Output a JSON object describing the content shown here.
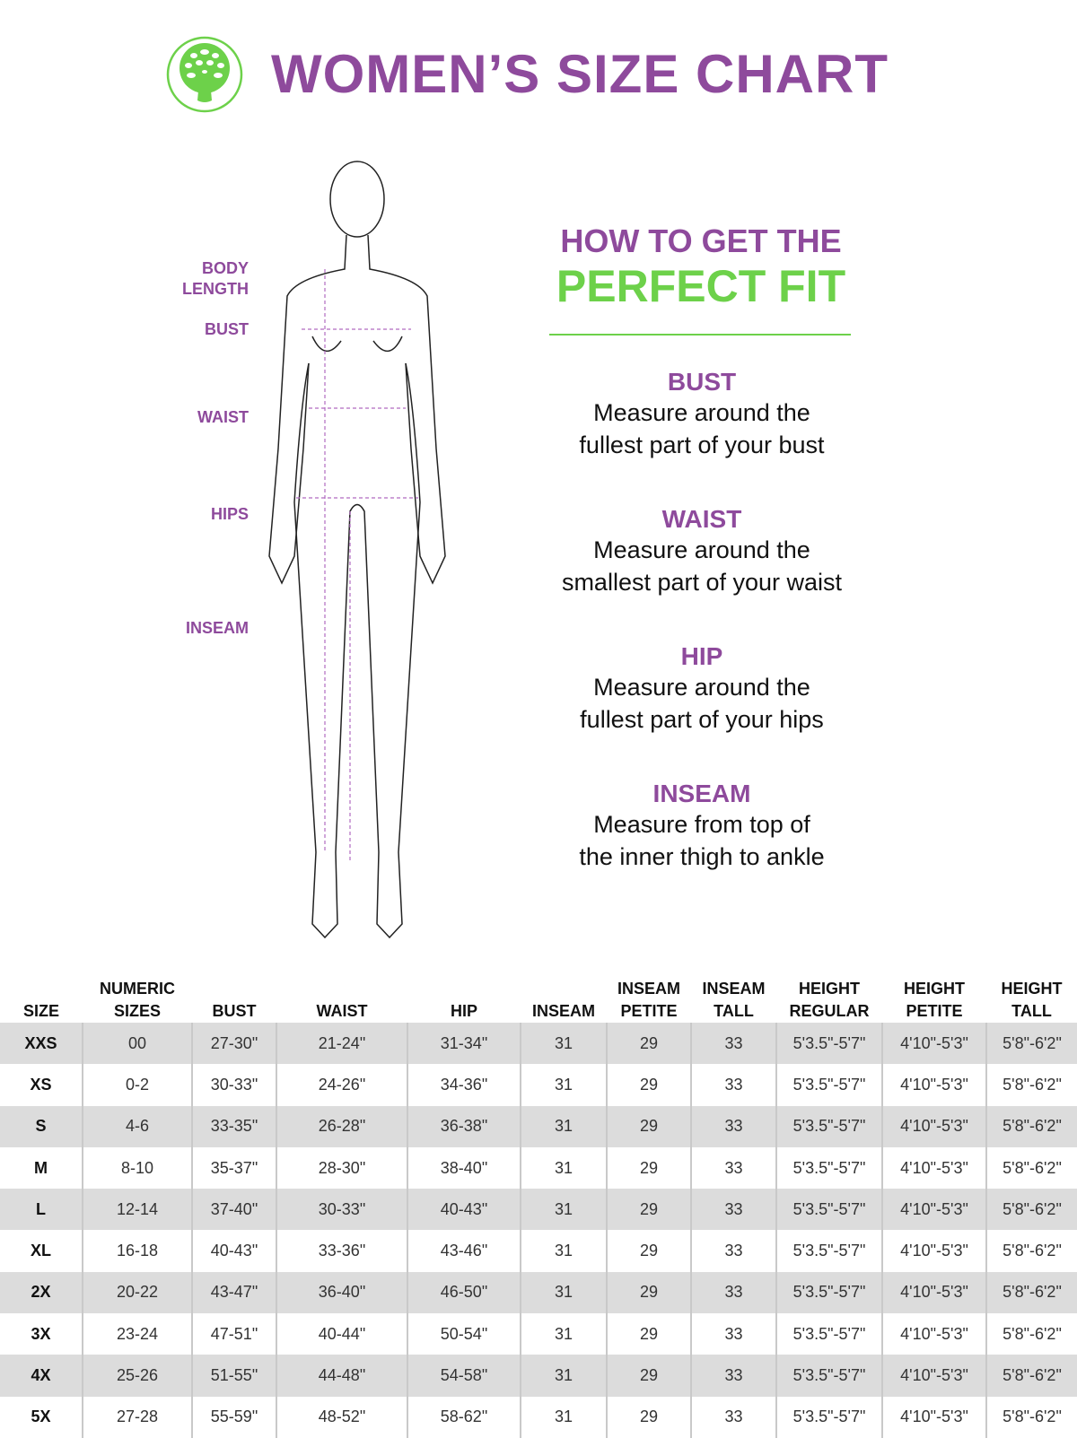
{
  "header": {
    "title": "WOMEN’S SIZE CHART",
    "logo": "tree-logo",
    "brand_color": "#6dd14a",
    "accent_color": "#8e4a9c"
  },
  "figure_labels": [
    "BODY LENGTH",
    "BUST",
    "WAIST",
    "HIPS",
    "INSEAM"
  ],
  "howto": {
    "line1": "HOW TO GET THE",
    "line2": "PERFECT FIT"
  },
  "tips": [
    {
      "title": "BUST",
      "line1": "Measure around the",
      "line2": "fullest part of your bust"
    },
    {
      "title": "WAIST",
      "line1": "Measure around the",
      "line2": "smallest part of your waist"
    },
    {
      "title": "HIP",
      "line1": "Measure around the",
      "line2": "fullest part of your hips"
    },
    {
      "title": "INSEAM",
      "line1": "Measure from top of",
      "line2": "the inner thigh to ankle"
    }
  ],
  "table": {
    "headers": [
      [
        "SIZE",
        ""
      ],
      [
        "NUMERIC",
        "SIZES"
      ],
      [
        "BUST",
        ""
      ],
      [
        "WAIST",
        ""
      ],
      [
        "HIP",
        ""
      ],
      [
        "INSEAM",
        ""
      ],
      [
        "INSEAM",
        "PETITE"
      ],
      [
        "INSEAM",
        "TALL"
      ],
      [
        "HEIGHT",
        "REGULAR"
      ],
      [
        "HEIGHT",
        "PETITE"
      ],
      [
        "HEIGHT",
        "TALL"
      ]
    ],
    "rows": [
      [
        "XXS",
        "00",
        "27-30\"",
        "21-24\"",
        "31-34\"",
        "31",
        "29",
        "33",
        "5'3.5\"-5'7\"",
        "4'10\"-5'3\"",
        "5'8\"-6'2\""
      ],
      [
        "XS",
        "0-2",
        "30-33\"",
        "24-26\"",
        "34-36\"",
        "31",
        "29",
        "33",
        "5'3.5\"-5'7\"",
        "4'10\"-5'3\"",
        "5'8\"-6'2\""
      ],
      [
        "S",
        "4-6",
        "33-35\"",
        "26-28\"",
        "36-38\"",
        "31",
        "29",
        "33",
        "5'3.5\"-5'7\"",
        "4'10\"-5'3\"",
        "5'8\"-6'2\""
      ],
      [
        "M",
        "8-10",
        "35-37\"",
        "28-30\"",
        "38-40\"",
        "31",
        "29",
        "33",
        "5'3.5\"-5'7\"",
        "4'10\"-5'3\"",
        "5'8\"-6'2\""
      ],
      [
        "L",
        "12-14",
        "37-40\"",
        "30-33\"",
        "40-43\"",
        "31",
        "29",
        "33",
        "5'3.5\"-5'7\"",
        "4'10\"-5'3\"",
        "5'8\"-6'2\""
      ],
      [
        "XL",
        "16-18",
        "40-43\"",
        "33-36\"",
        "43-46\"",
        "31",
        "29",
        "33",
        "5'3.5\"-5'7\"",
        "4'10\"-5'3\"",
        "5'8\"-6'2\""
      ],
      [
        "2X",
        "20-22",
        "43-47\"",
        "36-40\"",
        "46-50\"",
        "31",
        "29",
        "33",
        "5'3.5\"-5'7\"",
        "4'10\"-5'3\"",
        "5'8\"-6'2\""
      ],
      [
        "3X",
        "23-24",
        "47-51\"",
        "40-44\"",
        "50-54\"",
        "31",
        "29",
        "33",
        "5'3.5\"-5'7\"",
        "4'10\"-5'3\"",
        "5'8\"-6'2\""
      ],
      [
        "4X",
        "25-26",
        "51-55\"",
        "44-48\"",
        "54-58\"",
        "31",
        "29",
        "33",
        "5'3.5\"-5'7\"",
        "4'10\"-5'3\"",
        "5'8\"-6'2\""
      ],
      [
        "5X",
        "27-28",
        "55-59\"",
        "48-52\"",
        "58-62\"",
        "31",
        "29",
        "33",
        "5'3.5\"-5'7\"",
        "4'10\"-5'3\"",
        "5'8\"-6'2\""
      ]
    ]
  }
}
